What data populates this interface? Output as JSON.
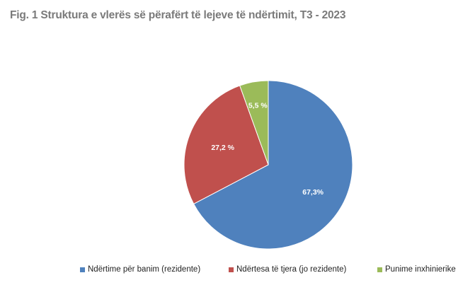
{
  "title": "Fig. 1 Struktura e vlerës së përafërt të lejeve të ndërtimit, T3 - 2023",
  "chart_data": {
    "type": "pie",
    "title": "Fig. 1 Struktura e vlerës së përafërt të lejeve të ndërtimit, T3 - 2023",
    "start_angle": "12 o'clock",
    "direction": "clockwise",
    "legend_position": "bottom",
    "slices": [
      {
        "name": "Ndërtime për banim (rezidente)",
        "value": 67.3,
        "label": "67,3%",
        "color": "#4f81bd"
      },
      {
        "name": "Ndërtesa të tjera (jo rezidente)",
        "value": 27.2,
        "label": "27,2 %",
        "color": "#c0504d"
      },
      {
        "name": "Punime inxhinierike",
        "value": 5.5,
        "label": "5,5 %",
        "color": "#9bbb59"
      }
    ]
  }
}
